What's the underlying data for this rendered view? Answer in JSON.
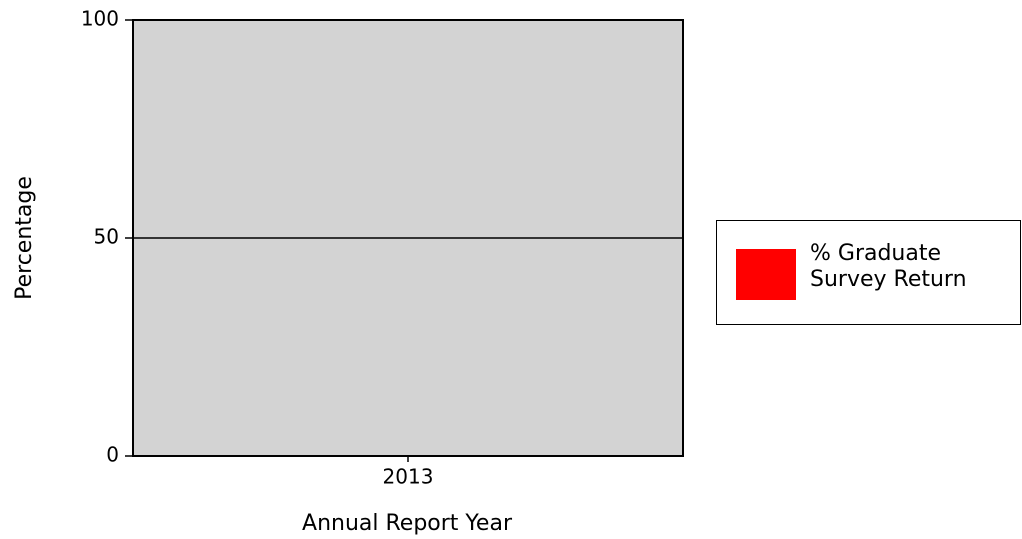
{
  "chart_data": {
    "type": "bar",
    "xlabel": "Annual Report Year",
    "ylabel": "Percentage",
    "categories": [
      "2013"
    ],
    "series": [
      {
        "name": "% Graduate Survey Return",
        "color": "#ff0000",
        "values": [
          0
        ]
      }
    ],
    "ylim": [
      0,
      100
    ],
    "yticks": [
      0,
      50,
      100
    ],
    "grid": true,
    "plot_background": "#d3d3d3",
    "legend": "right"
  }
}
